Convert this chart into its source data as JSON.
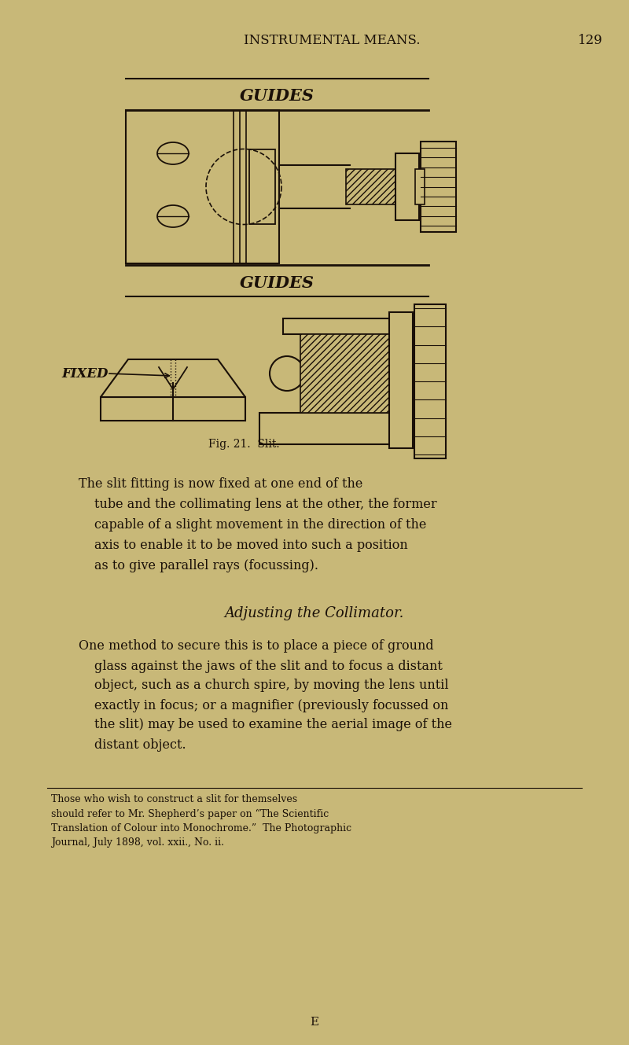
{
  "bg_color": "#c8b878",
  "text_color": "#1a1008",
  "page_title": "INSTRUMENTAL MEANS.",
  "page_number": "129",
  "fig_caption": "Fig. 21.  Slit.",
  "section_heading": "Adjusting the Collimator.",
  "paragraph1": "The slit fitting is now fixed at one end of the\ntube and the collimating lens at the other, the former\ncapable of a slight movement in the direction of the\naxis to enable it to be moved into such a position\nas to give parallel rays (focussing).",
  "paragraph2": "One method to secure this is to place a piece of ground\nglass against the jaws of the slit and to focus a distant\nobject, such as a church spire, by moving the lens until\nexactly in focus; or a magnifier (previously focussed on\nthe slit) may be used to examine the aerial image of the\ndistant object.",
  "footnote": "Those who wish to construct a slit for themselves\nshould refer to Mr. Shepherd’s paper on “The Scientific\nTranslation of Colour into Monochrome.”  The Photographic\nJournal, July 1898, vol. xxii., No. ii.",
  "footer": "E"
}
